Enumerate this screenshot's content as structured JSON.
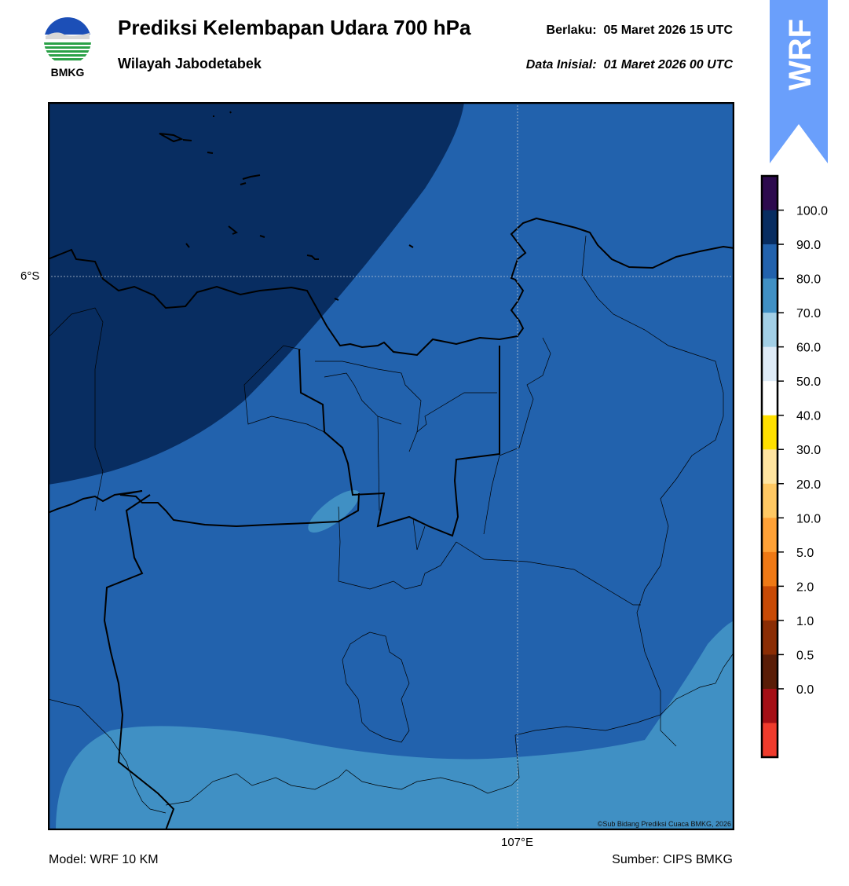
{
  "header": {
    "title": "Prediksi Kelembapan Udara 700 hPa",
    "subtitle": "Wilayah Jabodetabek",
    "valid_label": "Berlaku:",
    "valid_value": "05 Maret 2026 15 UTC",
    "init_label": "Data Inisial:",
    "init_value": "01 Maret 2026 00 UTC"
  },
  "logo": {
    "text": "BMKG",
    "icon": "bmkg-logo"
  },
  "badge": {
    "text": "WRF",
    "color": "#6a9ffb"
  },
  "map": {
    "lat_label": "6°S",
    "lon_label": "107°E",
    "credit": "©Sub Bidang Prediksi Cuaca BMKG, 2026",
    "fill_colors": {
      "level_80_90": "#2262ad",
      "level_90_100": "#082d61",
      "level_70_80": "#4090c4"
    }
  },
  "footer": {
    "model": "Model: WRF 10 KM",
    "source": "Sumber: CIPS BMKG"
  },
  "colorbar": {
    "labels": [
      "100.0",
      "90.0",
      "80.0",
      "70.0",
      "60.0",
      "50.0",
      "40.0",
      "30.0",
      "20.0",
      "10.0",
      "5.0",
      "2.0",
      "1.0",
      "0.5",
      "0.0"
    ],
    "colors": [
      "#2d0a4e",
      "#082d61",
      "#2262ad",
      "#4090c4",
      "#a2cfe6",
      "#deebf7",
      "#ffffff",
      "#ffe000",
      "#ffe4a0",
      "#ffc863",
      "#ffa136",
      "#ef7915",
      "#c84a05",
      "#8b2d04",
      "#5a1d07",
      "#a50f15",
      "#ef3b2c"
    ]
  }
}
